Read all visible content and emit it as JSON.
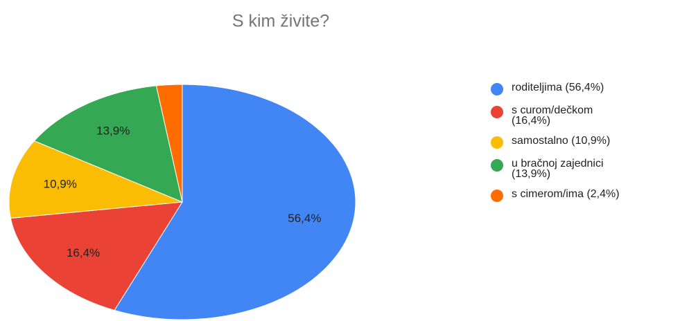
{
  "chart_data": {
    "type": "pie",
    "title": "S kim živite?",
    "categories": [
      "roditeljima (56,4%)",
      "s curom/dečkom (16,4%)",
      "samostalno (10,9%)",
      "u bračnoj zajednici (13,9%)",
      "s cimerom/ima (2,4%)"
    ],
    "values": [
      56.4,
      16.4,
      10.9,
      13.9,
      2.4
    ],
    "value_labels": [
      "56,4%",
      "16,4%",
      "10,9%",
      "13,9%",
      null
    ],
    "colors": [
      "#4285f4",
      "#ea4335",
      "#fbbc04",
      "#34a853",
      "#ff6d01"
    ],
    "legend": "right"
  }
}
